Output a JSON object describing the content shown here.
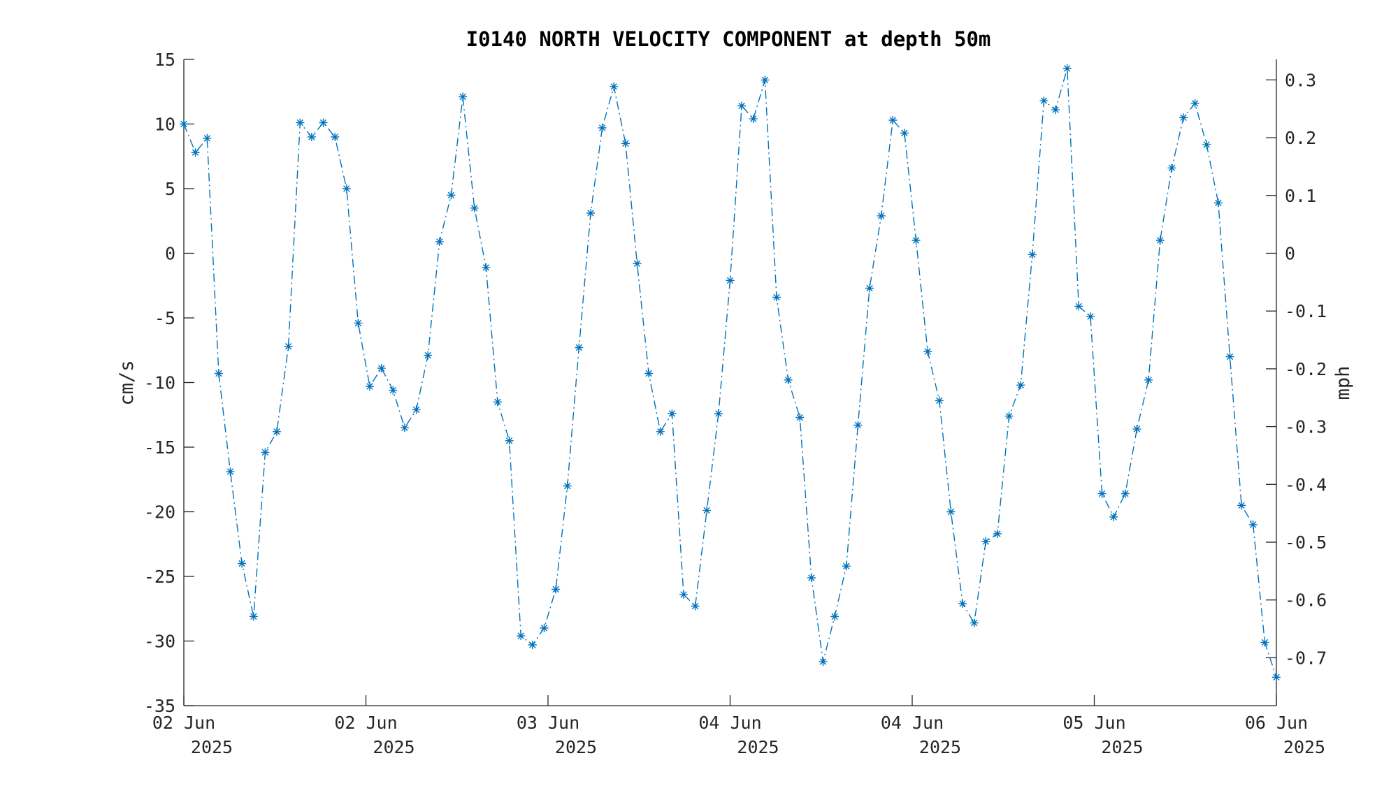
{
  "chart_data": {
    "type": "line",
    "title": "I0140 NORTH VELOCITY COMPONENT at depth 50m",
    "ylabel": "cm/s",
    "ylabel_right": "mph",
    "ylim": [
      -35,
      15
    ],
    "yticks": [
      15,
      10,
      5,
      0,
      -5,
      -10,
      -15,
      -20,
      -25,
      -30,
      -35
    ],
    "ylim_right": [
      -0.7829,
      0.3355
    ],
    "yticks_right": [
      0.3,
      0.2,
      0.1,
      0,
      -0.1,
      -0.2,
      -0.3,
      -0.4,
      -0.5,
      -0.6,
      -0.7
    ],
    "yticks_right_labels": [
      "0.3",
      "0.2",
      "0.1",
      "0",
      "-0.1",
      "-0.2",
      "-0.3",
      "-0.4",
      "-0.5",
      "-0.6",
      "-0.7"
    ],
    "xticks": [
      {
        "x": 0,
        "line1": "02 Jun",
        "line2": "2025"
      },
      {
        "x": 1,
        "line1": "02 Jun",
        "line2": "2025"
      },
      {
        "x": 2,
        "line1": "03 Jun",
        "line2": "2025"
      },
      {
        "x": 3,
        "line1": "04 Jun",
        "line2": "2025"
      },
      {
        "x": 4,
        "line1": "04 Jun",
        "line2": "2025"
      },
      {
        "x": 5,
        "line1": "05 Jun",
        "line2": "2025"
      },
      {
        "x": 6,
        "line1": "06 Jun",
        "line2": "2025"
      }
    ],
    "xlim": [
      0,
      6
    ],
    "grid": false,
    "legend": "none",
    "series": [
      {
        "color": "#0072BD",
        "line_style": "dash-dot",
        "marker": "asterisk",
        "values": [
          10.0,
          7.8,
          8.9,
          -9.3,
          -16.9,
          -24.0,
          -28.1,
          -15.4,
          -13.8,
          -7.2,
          10.1,
          9.0,
          10.1,
          9.0,
          5.0,
          -5.4,
          -10.3,
          -8.9,
          -10.6,
          -13.5,
          -12.1,
          -7.9,
          0.9,
          4.5,
          12.1,
          3.5,
          -1.1,
          -11.5,
          -14.5,
          -29.6,
          -30.3,
          -29.0,
          -26.0,
          -18.0,
          -7.3,
          3.1,
          9.7,
          12.9,
          8.5,
          -0.8,
          -9.3,
          -13.8,
          -12.4,
          -26.4,
          -27.3,
          -19.9,
          -12.4,
          -2.1,
          11.4,
          10.4,
          13.4,
          -3.4,
          -9.8,
          -12.7,
          -25.1,
          -31.6,
          -28.1,
          -24.2,
          -13.3,
          -2.7,
          2.9,
          10.3,
          9.3,
          1.0,
          -7.6,
          -11.4,
          -20.0,
          -27.1,
          -28.6,
          -22.3,
          -21.7,
          -12.6,
          -10.2,
          -0.1,
          11.8,
          11.1,
          14.3,
          -4.1,
          -4.9,
          -18.6,
          -20.4,
          -18.6,
          -13.6,
          -9.8,
          1.0,
          6.6,
          10.5,
          11.6,
          8.4,
          3.9,
          -8.0,
          -19.5,
          -21.0,
          -30.1,
          -32.8
        ]
      }
    ]
  }
}
